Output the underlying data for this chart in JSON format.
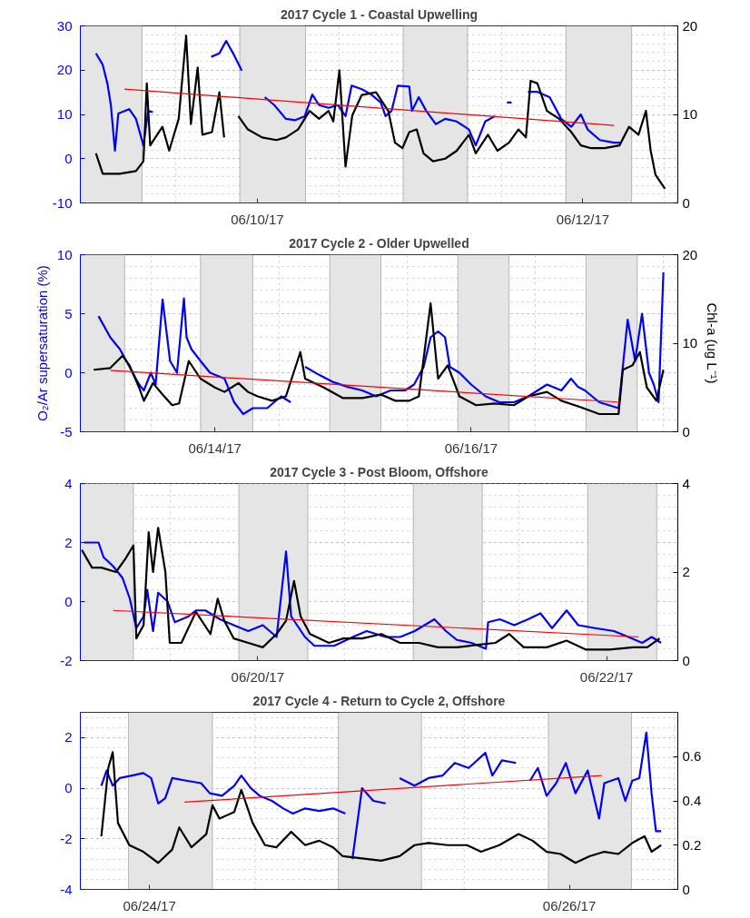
{
  "chart_data": [
    {
      "type": "line",
      "title": "2017 Cycle 1 - Coastal Upwelling",
      "xlim": [
        "2017-06-08T21:54",
        "2017-06-12T14:00"
      ],
      "xticks": [
        {
          "value": "2017-06-10T00:00",
          "label": "06/10/17"
        },
        {
          "value": "2017-06-12T00:00",
          "label": "06/12/17"
        }
      ],
      "ylim": [
        -10,
        30
      ],
      "yticks": [
        -10,
        0,
        10,
        20,
        30
      ],
      "y2lim": [
        0,
        20
      ],
      "y2ticks": [
        0,
        10,
        20
      ],
      "grid": true,
      "bands": [
        {
          "axis": "x",
          "from": "2017-06-08T21:54",
          "to": "2017-06-09T07:00",
          "color": "#e5e5e5"
        },
        {
          "axis": "x",
          "from": "2017-06-09T21:24",
          "to": "2017-06-10T07:06",
          "color": "#e5e5e5"
        },
        {
          "axis": "x",
          "from": "2017-06-10T21:30",
          "to": "2017-06-11T07:00",
          "color": "#e5e5e5"
        },
        {
          "axis": "x",
          "from": "2017-06-11T21:30",
          "to": "2017-06-12T07:12",
          "color": "#e5e5e5"
        }
      ],
      "series": [
        {
          "color": "#0000ff",
          "x": [
            "2017-06-09T00:12",
            "2017-06-09T01:12",
            "2017-06-09T01:54",
            "2017-06-09T02:24",
            "2017-06-09T03:00",
            "2017-06-09T03:30",
            "2017-06-09T04:30",
            "2017-06-09T05:06",
            "2017-06-09T06:06",
            "2017-06-09T07:12",
            "2017-06-09T07:54",
            "2017-06-09T08:36",
            "2017-06-09T13:00",
            "2017-06-09T17:12",
            "2017-06-09T18:24",
            "2017-06-09T19:24",
            "2017-06-09T20:30",
            "2017-06-09T21:42",
            "2017-06-09T23:30",
            "2017-06-10T01:06",
            "2017-06-10T02:30",
            "2017-06-10T04:12",
            "2017-06-10T05:36",
            "2017-06-10T07:00",
            "2017-06-10T08:06",
            "2017-06-10T09:06",
            "2017-06-10T10:30",
            "2017-06-10T11:54",
            "2017-06-10T13:00",
            "2017-06-10T13:54",
            "2017-06-10T15:24",
            "2017-06-10T16:48",
            "2017-06-10T18:12",
            "2017-06-10T18:54",
            "2017-06-10T19:48",
            "2017-06-10T20:42",
            "2017-06-10T22:24",
            "2017-06-10T22:48",
            "2017-06-10T23:48",
            "2017-06-11T00:54",
            "2017-06-11T02:18",
            "2017-06-11T03:42",
            "2017-06-11T05:24",
            "2017-06-11T07:12",
            "2017-06-11T08:12",
            "2017-06-11T09:36",
            "2017-06-11T11:00",
            "2017-06-11T12:00",
            "2017-06-11T12:48",
            "2017-06-11T13:30",
            "2017-06-11T14:42",
            "2017-06-11T15:54",
            "2017-06-11T17:18",
            "2017-06-11T19:06",
            "2017-06-11T20:48",
            "2017-06-11T22:18",
            "2017-06-11T23:42",
            "2017-06-12T00:42",
            "2017-06-12T02:30",
            "2017-06-12T04:36",
            "2017-06-12T05:36"
          ],
          "values": [
            23.8,
            21.2,
            16.9,
            12.1,
            1.8,
            10.2,
            10.8,
            11.2,
            9,
            3,
            10.8,
            10.5,
            null,
            23,
            23.8,
            26.6,
            23.6,
            19.9,
            null,
            13.9,
            12.1,
            9,
            8.7,
            9.6,
            14.5,
            12.1,
            11.5,
            12.1,
            9.6,
            16.5,
            15.7,
            14.5,
            12.7,
            9.6,
            10.8,
            16.5,
            16.3,
            10.8,
            13.9,
            10.8,
            7.8,
            9,
            8.4,
            6.6,
            3,
            8.4,
            9.6,
            null,
            12.7,
            12.7,
            null,
            15.1,
            15.1,
            13.9,
            9,
            7.2,
            10,
            6.6,
            4.2,
            3.6,
            3.6
          ]
        },
        {
          "color": "#000000",
          "axis": "y2",
          "x": [
            "2017-06-09T00:12",
            "2017-06-09T01:12",
            "2017-06-09T03:42",
            "2017-06-09T06:06",
            "2017-06-09T07:12",
            "2017-06-09T07:42",
            "2017-06-09T08:12",
            "2017-06-09T10:00",
            "2017-06-09T11:00",
            "2017-06-09T12:24",
            "2017-06-09T13:30",
            "2017-06-09T14:12",
            "2017-06-09T15:12",
            "2017-06-09T15:54",
            "2017-06-09T17:18",
            "2017-06-09T18:24",
            "2017-06-09T19:06",
            "2017-06-09T20:00",
            "2017-06-09T21:12",
            "2017-06-09T22:36",
            "2017-06-10T00:42",
            "2017-06-10T02:48",
            "2017-06-10T04:12",
            "2017-06-10T06:00",
            "2017-06-10T07:42",
            "2017-06-10T09:06",
            "2017-06-10T10:30",
            "2017-06-10T11:12",
            "2017-06-10T12:06",
            "2017-06-10T13:00",
            "2017-06-10T14:00",
            "2017-06-10T15:24",
            "2017-06-10T17:30",
            "2017-06-10T19:18",
            "2017-06-10T20:18",
            "2017-06-10T21:24",
            "2017-06-10T22:24",
            "2017-06-10T23:30",
            "2017-06-11T00:30",
            "2017-06-11T01:54",
            "2017-06-11T03:42",
            "2017-06-11T05:24",
            "2017-06-11T07:12",
            "2017-06-11T08:12",
            "2017-06-11T10:00",
            "2017-06-11T11:24",
            "2017-06-11T13:06",
            "2017-06-11T14:30",
            "2017-06-11T15:36",
            "2017-06-11T16:18",
            "2017-06-11T17:18",
            "2017-06-11T18:42",
            "2017-06-11T20:30",
            "2017-06-11T22:18",
            "2017-06-11T23:42",
            "2017-06-12T01:06",
            "2017-06-12T03:12",
            "2017-06-12T05:24",
            "2017-06-12T06:48",
            "2017-06-12T08:12",
            "2017-06-12T09:18",
            "2017-06-12T10:00",
            "2017-06-12T10:42",
            "2017-06-12T12:06"
          ],
          "values": [
            5.6,
            3.3,
            3.3,
            3.6,
            4.7,
            13.5,
            6.5,
            8.6,
            5.9,
            9.5,
            18.9,
            8.9,
            15.3,
            7.7,
            8,
            12.5,
            7.4,
            null,
            9.8,
            8.3,
            7.4,
            7.1,
            7.4,
            8.3,
            10.4,
            9.5,
            10.4,
            9.2,
            15,
            4.1,
            9.9,
            12.2,
            12.5,
            10.4,
            6.8,
            6.2,
            8,
            8.3,
            5.6,
            4.7,
            5,
            5.9,
            7.7,
            5.6,
            7.7,
            5.9,
            6.8,
            8.3,
            7.4,
            13.8,
            13.5,
            10.4,
            9.5,
            8,
            6.5,
            6.2,
            6.2,
            6.5,
            8.6,
            7.7,
            10.4,
            5.9,
            3.2,
            1.6
          ]
        },
        {
          "color": "#ff0000",
          "x": [
            "2017-06-09T04:24",
            "2017-06-12T04:36"
          ],
          "values": [
            15.7,
            7.5
          ]
        }
      ]
    },
    {
      "type": "line",
      "title": "2017 Cycle 2 - Older Upwelled",
      "ylabel": "O₂/Ar supersaturation (%)",
      "y2label": "Chl-a (ug L⁻¹)",
      "xlim": [
        "2017-06-12T22:48",
        "2017-06-17T14:42"
      ],
      "xticks": [
        {
          "value": "2017-06-14T00:00",
          "label": "06/14/17"
        },
        {
          "value": "2017-06-16T00:00",
          "label": "06/16/17"
        }
      ],
      "ylim": [
        -5,
        10
      ],
      "yticks": [
        -5,
        0,
        5,
        10
      ],
      "y2lim": [
        0,
        20
      ],
      "y2ticks": [
        0,
        10,
        20
      ],
      "grid": true,
      "bands": [
        {
          "axis": "x",
          "from": "2017-06-12T22:48",
          "to": "2017-06-13T07:06",
          "color": "#e5e5e5"
        },
        {
          "axis": "x",
          "from": "2017-06-13T21:18",
          "to": "2017-06-14T07:06",
          "color": "#e5e5e5"
        },
        {
          "axis": "x",
          "from": "2017-06-14T21:30",
          "to": "2017-06-15T07:06",
          "color": "#e5e5e5"
        },
        {
          "axis": "x",
          "from": "2017-06-15T21:30",
          "to": "2017-06-16T07:06",
          "color": "#e5e5e5"
        },
        {
          "axis": "x",
          "from": "2017-06-16T21:30",
          "to": "2017-06-17T07:06",
          "color": "#e5e5e5"
        }
      ],
      "series": [
        {
          "color": "#0000ff",
          "x": [
            "2017-06-13T02:12",
            "2017-06-13T04:24",
            "2017-06-13T06:12",
            "2017-06-13T08:00",
            "2017-06-13T09:48",
            "2017-06-13T10:42",
            "2017-06-13T12:00",
            "2017-06-13T12:54",
            "2017-06-13T14:12",
            "2017-06-13T15:36",
            "2017-06-13T16:54",
            "2017-06-13T18:12",
            "2017-06-13T18:42",
            "2017-06-13T19:36",
            "2017-06-13T21:18",
            "2017-06-13T23:06",
            "2017-06-14T01:48",
            "2017-06-14T03:36",
            "2017-06-14T05:18",
            "2017-06-14T07:06",
            "2017-06-14T09:48",
            "2017-06-14T12:24",
            "2017-06-14T14:12",
            "2017-06-14T15:06",
            "2017-06-14T16:54",
            "2017-06-14T19:36",
            "2017-06-14T22:12",
            "2017-06-15T00:54",
            "2017-06-15T03:36",
            "2017-06-15T06:12",
            "2017-06-15T08:54",
            "2017-06-15T11:36",
            "2017-06-15T13:18",
            "2017-06-15T15:06",
            "2017-06-15T16:24",
            "2017-06-15T17:48",
            "2017-06-15T19:06",
            "2017-06-15T20:00",
            "2017-06-15T21:48",
            "2017-06-16T00:00",
            "2017-06-16T02:42",
            "2017-06-16T05:18",
            "2017-06-16T08:00",
            "2017-06-16T10:42",
            "2017-06-16T14:12",
            "2017-06-16T16:54",
            "2017-06-16T18:42",
            "2017-06-16T20:00",
            "2017-06-16T21:18",
            "2017-06-17T00:00",
            "2017-06-17T03:36",
            "2017-06-17T04:24",
            "2017-06-17T05:18",
            "2017-06-17T06:42",
            "2017-06-17T08:00",
            "2017-06-17T09:18",
            "2017-06-17T10:12",
            "2017-06-17T11:06",
            "2017-06-17T12:00"
          ],
          "values": [
            4.8,
            3,
            2,
            0.5,
            -1,
            -1.5,
            0,
            -1,
            6.2,
            1,
            0,
            6.3,
            3,
            2,
            1,
            0,
            -0.5,
            -2.5,
            -3.5,
            -3,
            -3,
            -2,
            -2.5,
            null,
            0.5,
            -0.2,
            -0.8,
            -1.2,
            -1.5,
            -2,
            -1.5,
            -1.5,
            -1,
            0.5,
            3,
            3.5,
            3,
            0.5,
            0,
            -1,
            -2,
            -2.5,
            -2.5,
            -2,
            -1,
            -1.5,
            -0.5,
            -1.2,
            -1.5,
            -2.5,
            -3,
            0.5,
            4.5,
            1,
            5,
            0,
            -1,
            -2.5,
            8.5
          ]
        },
        {
          "color": "#000000",
          "axis": "y2",
          "x": [
            "2017-06-13T01:18",
            "2017-06-13T04:24",
            "2017-06-13T06:42",
            "2017-06-13T08:00",
            "2017-06-13T09:48",
            "2017-06-13T10:42",
            "2017-06-13T12:24",
            "2017-06-13T14:12",
            "2017-06-13T16:00",
            "2017-06-13T17:18",
            "2017-06-13T19:06",
            "2017-06-13T21:18",
            "2017-06-14T00:00",
            "2017-06-14T01:48",
            "2017-06-14T04:24",
            "2017-06-14T06:12",
            "2017-06-14T08:00",
            "2017-06-14T10:42",
            "2017-06-14T13:18",
            "2017-06-14T16:00",
            "2017-06-14T16:54",
            "2017-06-14T20:24",
            "2017-06-15T00:00",
            "2017-06-15T03:36",
            "2017-06-15T07:06",
            "2017-06-15T09:48",
            "2017-06-15T12:24",
            "2017-06-15T14:12",
            "2017-06-15T16:24",
            "2017-06-15T17:48",
            "2017-06-15T19:36",
            "2017-06-15T21:48",
            "2017-06-16T00:54",
            "2017-06-16T04:24",
            "2017-06-16T08:00",
            "2017-06-16T10:42",
            "2017-06-16T14:12",
            "2017-06-16T16:54",
            "2017-06-16T20:24",
            "2017-06-17T00:00",
            "2017-06-17T03:36",
            "2017-06-17T04:24",
            "2017-06-17T06:12",
            "2017-06-17T07:36",
            "2017-06-17T08:54",
            "2017-06-17T10:42",
            "2017-06-17T12:00"
          ],
          "values": [
            7,
            7.2,
            8.6,
            7.5,
            5,
            3.5,
            5.5,
            4.2,
            3,
            3.2,
            8,
            6,
            5,
            4.5,
            5.5,
            4.5,
            4,
            3.5,
            4,
            9,
            6,
            5,
            3.8,
            3.8,
            4.2,
            3.5,
            3.5,
            4,
            14.5,
            6,
            7.5,
            4,
            3,
            3.2,
            3,
            4,
            4.5,
            3.5,
            2.8,
            2,
            2,
            7,
            7.5,
            9,
            5,
            3.5,
            7
          ]
        },
        {
          "color": "#ff0000",
          "x": [
            "2017-06-13T04:24",
            "2017-06-17T04:00"
          ],
          "values": [
            0.2,
            -2.5
          ]
        }
      ]
    },
    {
      "type": "line",
      "title": "2017 Cycle 3 - Post Bloom, Offshore",
      "xlim": [
        "2017-06-18T23:36",
        "2017-06-22T09:48"
      ],
      "xticks": [
        {
          "value": "2017-06-20T00:00",
          "label": "06/20/17"
        },
        {
          "value": "2017-06-22T00:00",
          "label": "06/22/17"
        }
      ],
      "ylim": [
        -2,
        4
      ],
      "yticks": [
        -2,
        0,
        2,
        4
      ],
      "y2lim": [
        0,
        4
      ],
      "y2ticks": [
        0,
        2,
        4
      ],
      "grid": true,
      "bands": [
        {
          "axis": "x",
          "from": "2017-06-18T23:36",
          "to": "2017-06-19T06:54",
          "color": "#e5e5e5"
        },
        {
          "axis": "x",
          "from": "2017-06-19T21:24",
          "to": "2017-06-20T06:54",
          "color": "#e5e5e5"
        },
        {
          "axis": "x",
          "from": "2017-06-20T21:24",
          "to": "2017-06-21T06:54",
          "color": "#e5e5e5"
        },
        {
          "axis": "x",
          "from": "2017-06-21T21:24",
          "to": "2017-06-22T06:54",
          "color": "#e5e5e5"
        }
      ],
      "series": [
        {
          "color": "#0000ff",
          "x": [
            "2017-06-19T00:06",
            "2017-06-19T02:06",
            "2017-06-19T02:48",
            "2017-06-19T04:06",
            "2017-06-19T05:24",
            "2017-06-19T06:24",
            "2017-06-19T07:18",
            "2017-06-19T08:18",
            "2017-06-19T08:48",
            "2017-06-19T09:36",
            "2017-06-19T10:18",
            "2017-06-19T11:36",
            "2017-06-19T12:36",
            "2017-06-19T14:30",
            "2017-06-19T15:30",
            "2017-06-19T16:48",
            "2017-06-19T18:48",
            "2017-06-19T20:42",
            "2017-06-19T22:42",
            "2017-06-20T00:42",
            "2017-06-20T02:36",
            "2017-06-20T03:54",
            "2017-06-20T04:36",
            "2017-06-20T06:30",
            "2017-06-20T07:48",
            "2017-06-20T10:30",
            "2017-06-20T13:06",
            "2017-06-20T15:00",
            "2017-06-20T17:36",
            "2017-06-20T19:36",
            "2017-06-20T21:36",
            "2017-06-21T00:18",
            "2017-06-21T01:54",
            "2017-06-21T03:24",
            "2017-06-21T05:24",
            "2017-06-21T07:24",
            "2017-06-21T07:42",
            "2017-06-21T09:18",
            "2017-06-21T11:18",
            "2017-06-21T13:12",
            "2017-06-21T14:54",
            "2017-06-21T16:30",
            "2017-06-21T18:30",
            "2017-06-21T20:06",
            "2017-06-21T22:24",
            "2017-06-22T01:00",
            "2017-06-22T03:00",
            "2017-06-22T04:54",
            "2017-06-22T06:12",
            "2017-06-22T07:30"
          ],
          "values": [
            2,
            2,
            1.5,
            1.2,
            0.8,
            0.1,
            -0.9,
            -0.5,
            0.4,
            -1,
            0.3,
            0,
            -0.7,
            -0.5,
            -0.3,
            -0.3,
            -0.6,
            -0.8,
            -1,
            -0.8,
            -1.2,
            1.7,
            -0.5,
            -1.2,
            -1.5,
            -1.5,
            -1.2,
            -1,
            -1.2,
            -1.2,
            -1,
            -0.6,
            -1,
            -1.3,
            -1.4,
            -1.6,
            -0.7,
            -0.6,
            -0.8,
            -0.6,
            -0.4,
            -0.9,
            -0.3,
            -0.8,
            -0.9,
            -1,
            -1.2,
            -1.4,
            -1.2,
            -1.4
          ]
        },
        {
          "color": "#000000",
          "axis": "y2",
          "x": [
            "2017-06-18T23:48",
            "2017-06-19T01:12",
            "2017-06-19T02:30",
            "2017-06-19T04:30",
            "2017-06-19T05:48",
            "2017-06-19T06:54",
            "2017-06-19T07:18",
            "2017-06-19T08:18",
            "2017-06-19T09:00",
            "2017-06-19T09:36",
            "2017-06-19T10:18",
            "2017-06-19T11:18",
            "2017-06-19T11:54",
            "2017-06-19T13:30",
            "2017-06-19T15:30",
            "2017-06-19T17:30",
            "2017-06-19T18:30",
            "2017-06-19T19:24",
            "2017-06-19T20:42",
            "2017-06-19T22:42",
            "2017-06-20T00:42",
            "2017-06-20T02:36",
            "2017-06-20T03:54",
            "2017-06-20T05:00",
            "2017-06-20T05:54",
            "2017-06-20T07:12",
            "2017-06-20T09:48",
            "2017-06-20T11:48",
            "2017-06-20T14:24",
            "2017-06-20T17:00",
            "2017-06-20T19:36",
            "2017-06-20T22:12",
            "2017-06-21T00:48",
            "2017-06-21T03:24",
            "2017-06-21T06:00",
            "2017-06-21T08:42",
            "2017-06-21T10:36",
            "2017-06-21T12:36",
            "2017-06-21T15:48",
            "2017-06-21T18:30",
            "2017-06-21T21:06",
            "2017-06-22T00:24",
            "2017-06-22T03:42",
            "2017-06-22T05:36",
            "2017-06-22T07:18"
          ],
          "values": [
            2.5,
            2.1,
            2.1,
            2.0,
            2.3,
            2.6,
            0.5,
            0.8,
            2.9,
            2.0,
            3.0,
            2.0,
            0.4,
            0.4,
            1.1,
            0.6,
            1.4,
            0.9,
            0.5,
            0.4,
            0.3,
            0.6,
            0.9,
            1.8,
            1.0,
            0.6,
            0.4,
            0.5,
            0.5,
            0.6,
            0.4,
            0.4,
            0.3,
            0.3,
            0.35,
            0.4,
            0.6,
            0.3,
            0.3,
            0.45,
            0.25,
            0.25,
            0.3,
            0.3,
            0.5
          ]
        },
        {
          "color": "#ff0000",
          "x": [
            "2017-06-19T04:06",
            "2017-06-22T04:24"
          ],
          "values": [
            -0.3,
            -1.2
          ]
        }
      ]
    },
    {
      "type": "line",
      "title": "2017 Cycle 4 - Return to Cycle 2, Offshore",
      "xlim": [
        "2017-06-23T16:06",
        "2017-06-26T12:24"
      ],
      "xticks": [
        {
          "value": "2017-06-24T00:00",
          "label": "06/24/17"
        },
        {
          "value": "2017-06-26T00:00",
          "label": "06/26/17"
        }
      ],
      "ylim": [
        -4,
        3
      ],
      "yticks": [
        -4,
        -2,
        0,
        2
      ],
      "y2lim": [
        0,
        0.8
      ],
      "y2ticks": [
        0,
        0.2,
        0.4,
        0.6
      ],
      "grid": true,
      "bands": [
        {
          "axis": "x",
          "from": "2017-06-23T21:36",
          "to": "2017-06-24T07:12",
          "color": "#e5e5e5"
        },
        {
          "axis": "x",
          "from": "2017-06-24T21:36",
          "to": "2017-06-25T07:06",
          "color": "#e5e5e5"
        },
        {
          "axis": "x",
          "from": "2017-06-25T21:36",
          "to": "2017-06-26T07:06",
          "color": "#e5e5e5"
        }
      ],
      "series": [
        {
          "color": "#0000ff",
          "x": [
            "2017-06-23T18:30",
            "2017-06-23T19:06",
            "2017-06-23T19:48",
            "2017-06-23T20:36",
            "2017-06-23T22:00",
            "2017-06-23T23:18",
            "2017-06-24T00:12",
            "2017-06-24T01:00",
            "2017-06-24T01:48",
            "2017-06-24T02:36",
            "2017-06-24T04:12",
            "2017-06-24T05:54",
            "2017-06-24T06:54",
            "2017-06-24T08:18",
            "2017-06-24T09:42",
            "2017-06-24T10:30",
            "2017-06-24T11:36",
            "2017-06-24T12:36",
            "2017-06-24T14:00",
            "2017-06-24T15:18",
            "2017-06-24T16:24",
            "2017-06-24T17:48",
            "2017-06-24T19:24",
            "2017-06-24T21:00",
            "2017-06-24T22:24",
            "2017-06-24T22:42",
            "2017-06-24T23:12",
            "2017-06-25T00:18",
            "2017-06-25T01:36",
            "2017-06-25T03:00",
            "2017-06-25T03:48",
            "2017-06-25T04:36",
            "2017-06-25T06:18",
            "2017-06-25T07:54",
            "2017-06-25T09:30",
            "2017-06-25T10:54",
            "2017-06-25T12:30",
            "2017-06-25T14:24",
            "2017-06-25T15:12",
            "2017-06-25T16:18",
            "2017-06-25T17:54",
            "2017-06-25T18:42",
            "2017-06-25T19:30",
            "2017-06-25T20:24",
            "2017-06-25T21:24",
            "2017-06-25T22:30",
            "2017-06-25T23:36",
            "2017-06-26T00:42",
            "2017-06-26T02:06",
            "2017-06-26T03:24",
            "2017-06-26T04:00",
            "2017-06-26T05:36",
            "2017-06-26T06:24",
            "2017-06-26T07:12",
            "2017-06-26T08:00",
            "2017-06-26T08:48",
            "2017-06-26T09:24",
            "2017-06-26T09:54",
            "2017-06-26T10:30"
          ],
          "values": [
            0.1,
            0.7,
            0.1,
            0.4,
            0.5,
            0.6,
            0.4,
            -0.6,
            -0.4,
            0.4,
            0.3,
            0.2,
            -0.2,
            -0.3,
            0.1,
            0.5,
            0,
            -0.3,
            -0.5,
            -0.8,
            -1,
            -0.8,
            -0.9,
            -0.8,
            -1,
            null,
            -2.8,
            0,
            -0.5,
            -0.6,
            null,
            0.4,
            0.1,
            0.4,
            0.5,
            1.0,
            0.8,
            1.4,
            0.5,
            1.1,
            1.0,
            null,
            0.3,
            0.8,
            -0.3,
            0.2,
            1.0,
            -0.2,
            0.7,
            -1.2,
            0.2,
            0.4,
            -0.5,
            0.3,
            0.4,
            2.2,
            -0.2,
            -1.7,
            -1.7
          ]
        },
        {
          "color": "#000000",
          "axis": "y2",
          "x": [
            "2017-06-23T18:30",
            "2017-06-23T19:18",
            "2017-06-23T19:48",
            "2017-06-23T20:24",
            "2017-06-23T21:42",
            "2017-06-23T23:18",
            "2017-06-24T01:00",
            "2017-06-24T02:36",
            "2017-06-24T03:24",
            "2017-06-24T04:48",
            "2017-06-24T06:30",
            "2017-06-24T07:12",
            "2017-06-24T08:00",
            "2017-06-24T09:42",
            "2017-06-24T10:30",
            "2017-06-24T11:48",
            "2017-06-24T13:12",
            "2017-06-24T14:30",
            "2017-06-24T16:12",
            "2017-06-24T17:48",
            "2017-06-24T19:24",
            "2017-06-24T21:00",
            "2017-06-24T22:06",
            "2017-06-25T00:18",
            "2017-06-25T02:30",
            "2017-06-25T04:36",
            "2017-06-25T06:18",
            "2017-06-25T07:54",
            "2017-06-25T10:06",
            "2017-06-25T12:18",
            "2017-06-25T13:54",
            "2017-06-25T16:00",
            "2017-06-25T18:12",
            "2017-06-25T19:48",
            "2017-06-25T21:24",
            "2017-06-25T23:00",
            "2017-06-26T00:42",
            "2017-06-26T02:18",
            "2017-06-26T04:00",
            "2017-06-26T05:36",
            "2017-06-26T07:12",
            "2017-06-26T08:36",
            "2017-06-26T09:24",
            "2017-06-26T10:30"
          ],
          "values": [
            0.24,
            0.55,
            0.62,
            0.3,
            0.2,
            0.17,
            0.12,
            0.18,
            0.28,
            0.19,
            0.25,
            0.38,
            0.32,
            0.35,
            0.45,
            0.3,
            0.2,
            0.19,
            0.26,
            0.2,
            0.22,
            0.19,
            0.15,
            0.14,
            0.13,
            0.15,
            0.2,
            0.21,
            0.2,
            0.2,
            0.17,
            0.2,
            0.25,
            0.22,
            0.17,
            0.16,
            0.12,
            0.15,
            0.17,
            0.16,
            0.21,
            0.24,
            0.17,
            0.2
          ]
        },
        {
          "color": "#ff0000",
          "x": [
            "2017-06-24T04:00",
            "2017-06-26T03:42"
          ],
          "values": [
            -0.55,
            0.5
          ]
        }
      ]
    }
  ]
}
